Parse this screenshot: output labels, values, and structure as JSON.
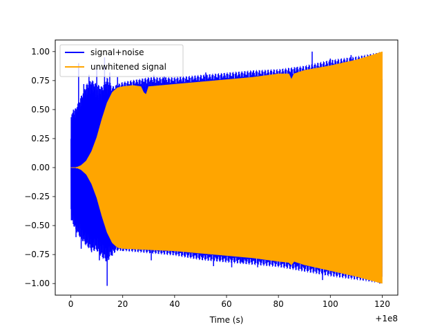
{
  "chart_data": {
    "type": "line",
    "title": "",
    "xlabel": "Time (s)",
    "ylabel": "",
    "x_offset_label": "+1e8",
    "xlim": [
      -6,
      126
    ],
    "ylim": [
      -1.1,
      1.1
    ],
    "xticks": [
      0,
      20,
      40,
      60,
      80,
      100,
      120
    ],
    "xtick_labels": [
      "0",
      "20",
      "40",
      "60",
      "80",
      "100",
      "120"
    ],
    "yticks": [
      1.0,
      0.75,
      0.5,
      0.25,
      0.0,
      -0.25,
      -0.5,
      -0.75,
      -1.0
    ],
    "ytick_labels": [
      "1.00",
      "0.75",
      "0.50",
      "0.25",
      "0.00",
      "−0.25",
      "−0.50",
      "−0.75",
      "−1.00"
    ],
    "grid": false,
    "legend_position": "top-left",
    "series": [
      {
        "name": "signal+noise",
        "color": "#0000ff",
        "x_range": [
          0,
          120
        ],
        "envelope_upper": [
          [
            0,
            0.45
          ],
          [
            2,
            0.52
          ],
          [
            4,
            0.62
          ],
          [
            6,
            0.72
          ],
          [
            8,
            0.76
          ],
          [
            10,
            0.72
          ],
          [
            12,
            0.7
          ],
          [
            14,
            0.78
          ],
          [
            16,
            0.7
          ],
          [
            18,
            0.72
          ],
          [
            20,
            0.74
          ],
          [
            30,
            0.78
          ],
          [
            40,
            0.78
          ],
          [
            50,
            0.8
          ],
          [
            60,
            0.82
          ],
          [
            70,
            0.84
          ],
          [
            80,
            0.85
          ],
          [
            90,
            0.88
          ],
          [
            100,
            0.93
          ],
          [
            110,
            0.96
          ],
          [
            120,
            1.0
          ]
        ],
        "envelope_lower": [
          [
            0,
            -0.45
          ],
          [
            2,
            -0.55
          ],
          [
            4,
            -0.62
          ],
          [
            6,
            -0.68
          ],
          [
            8,
            -0.72
          ],
          [
            10,
            -0.72
          ],
          [
            12,
            -0.78
          ],
          [
            14,
            -0.82
          ],
          [
            16,
            -0.75
          ],
          [
            18,
            -0.72
          ],
          [
            20,
            -0.72
          ],
          [
            30,
            -0.74
          ],
          [
            40,
            -0.76
          ],
          [
            50,
            -0.8
          ],
          [
            60,
            -0.82
          ],
          [
            70,
            -0.84
          ],
          [
            80,
            -0.86
          ],
          [
            90,
            -0.9
          ],
          [
            100,
            -0.94
          ],
          [
            110,
            -0.97
          ],
          [
            120,
            -1.0
          ]
        ],
        "spikes": [
          [
            1,
            0.5
          ],
          [
            2,
            -0.6
          ],
          [
            3,
            0.9
          ],
          [
            4,
            -0.7
          ],
          [
            5,
            0.72
          ],
          [
            6,
            -0.65
          ],
          [
            7,
            0.8
          ],
          [
            8,
            -0.73
          ],
          [
            9,
            0.63
          ],
          [
            10,
            0.87
          ],
          [
            11,
            -0.8
          ],
          [
            12,
            0.66
          ],
          [
            13,
            0.95
          ],
          [
            14,
            -1.02
          ],
          [
            15,
            0.82
          ],
          [
            16,
            -0.76
          ],
          [
            18,
            0.78
          ],
          [
            20,
            -0.72
          ],
          [
            25,
            0.73
          ],
          [
            31,
            -0.8
          ],
          [
            32,
            0.8
          ],
          [
            36,
            0.79
          ],
          [
            44,
            -0.77
          ],
          [
            52,
            0.82
          ],
          [
            55,
            -0.85
          ],
          [
            58,
            0.8
          ],
          [
            62,
            -0.86
          ],
          [
            66,
            -0.82
          ],
          [
            70,
            0.82
          ],
          [
            72,
            -0.86
          ],
          [
            80,
            -0.85
          ],
          [
            85,
            -0.82
          ],
          [
            87,
            0.86
          ],
          [
            93,
            1.0
          ],
          [
            97,
            -0.97
          ],
          [
            100,
            0.94
          ],
          [
            108,
            0.97
          ],
          [
            119,
            -1.0
          ]
        ]
      },
      {
        "name": "unwhitened signal",
        "color": "#ffa500",
        "x_range": [
          0,
          120
        ],
        "envelope_upper": [
          [
            0,
            0.0
          ],
          [
            2,
            0.0
          ],
          [
            4,
            0.02
          ],
          [
            6,
            0.06
          ],
          [
            8,
            0.14
          ],
          [
            10,
            0.26
          ],
          [
            12,
            0.42
          ],
          [
            14,
            0.56
          ],
          [
            16,
            0.65
          ],
          [
            18,
            0.69
          ],
          [
            20,
            0.7
          ],
          [
            24,
            0.71
          ],
          [
            27,
            0.7
          ],
          [
            28,
            0.65
          ],
          [
            29,
            0.63
          ],
          [
            30,
            0.7
          ],
          [
            40,
            0.72
          ],
          [
            50,
            0.74
          ],
          [
            60,
            0.76
          ],
          [
            70,
            0.78
          ],
          [
            80,
            0.81
          ],
          [
            84,
            0.81
          ],
          [
            85,
            0.76
          ],
          [
            86,
            0.81
          ],
          [
            90,
            0.84
          ],
          [
            100,
            0.88
          ],
          [
            110,
            0.93
          ],
          [
            116,
            0.97
          ],
          [
            120,
            1.0
          ]
        ],
        "envelope_lower": [
          [
            0,
            0.0
          ],
          [
            2,
            0.0
          ],
          [
            4,
            -0.02
          ],
          [
            6,
            -0.06
          ],
          [
            8,
            -0.14
          ],
          [
            10,
            -0.26
          ],
          [
            12,
            -0.42
          ],
          [
            14,
            -0.56
          ],
          [
            16,
            -0.65
          ],
          [
            18,
            -0.69
          ],
          [
            20,
            -0.7
          ],
          [
            30,
            -0.71
          ],
          [
            40,
            -0.72
          ],
          [
            50,
            -0.74
          ],
          [
            60,
            -0.76
          ],
          [
            70,
            -0.78
          ],
          [
            80,
            -0.81
          ],
          [
            84,
            -0.82
          ],
          [
            85,
            -0.84
          ],
          [
            86,
            -0.81
          ],
          [
            90,
            -0.84
          ],
          [
            100,
            -0.89
          ],
          [
            110,
            -0.94
          ],
          [
            120,
            -1.0
          ]
        ]
      }
    ]
  }
}
